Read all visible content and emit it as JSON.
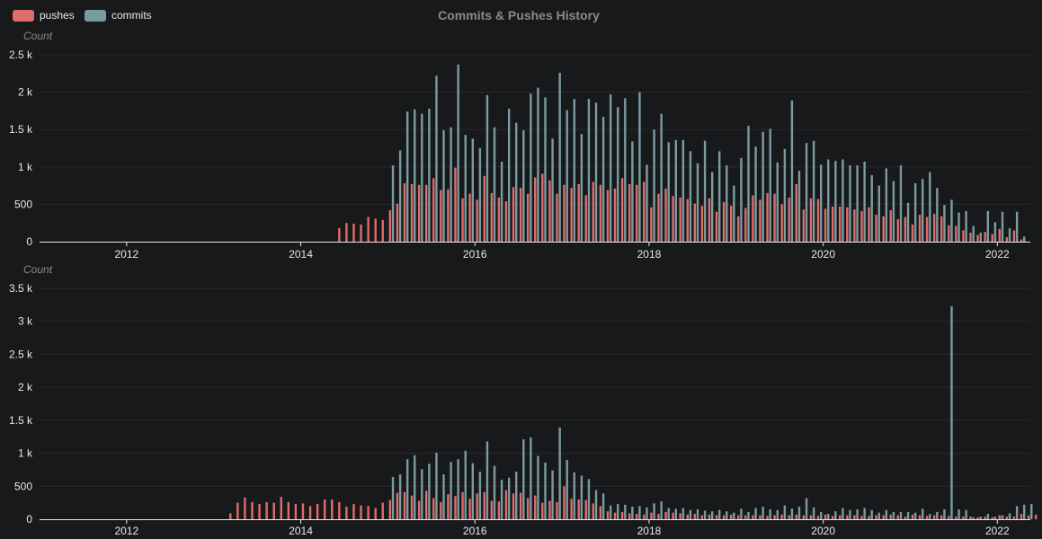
{
  "title": "Commits & Pushes History",
  "legend": [
    {
      "label": "pushes",
      "color": "#e06c6c"
    },
    {
      "label": "commits",
      "color": "#7a9ca1"
    }
  ],
  "colors": {
    "background": "#18191b",
    "pushes": "#e06c6c",
    "commits": "#7a9ca1",
    "title": "#8a8a8a",
    "grid": "#2a2b2e",
    "axis": "#e8e8e8",
    "tick_label": "#e8e8e8",
    "axis_title": "#8a8a8a"
  },
  "chart_data": [
    {
      "type": "bar",
      "ylabel": "Count",
      "xlim": [
        "2011-01",
        "2022-04"
      ],
      "ylim": [
        0,
        2500
      ],
      "yticks": [
        0,
        500,
        1000,
        1500,
        2000,
        2500
      ],
      "ytick_labels": [
        "0",
        "500",
        "1 k",
        "1.5 k",
        "2 k",
        "2.5 k"
      ],
      "xticks": [
        "2012",
        "2014",
        "2016",
        "2018",
        "2020",
        "2022"
      ],
      "grid": true,
      "series": [
        {
          "name": "pushes",
          "start": "2014-06",
          "values": [
            180,
            250,
            240,
            230,
            330,
            310,
            290,
            420,
            510,
            780,
            770,
            760,
            760,
            850,
            690,
            700,
            990,
            580,
            640,
            560,
            880,
            650,
            590,
            540,
            730,
            720,
            640,
            860,
            910,
            820,
            640,
            760,
            720,
            770,
            620,
            800,
            760,
            690,
            710,
            850,
            770,
            760,
            800,
            460,
            640,
            710,
            610,
            590,
            570,
            510,
            480,
            580,
            400,
            530,
            480,
            340,
            450,
            620,
            560,
            650,
            640,
            500,
            590,
            770,
            430,
            580,
            570,
            440,
            470,
            470,
            460,
            430,
            410,
            460,
            360,
            340,
            420,
            300,
            330,
            230,
            360,
            330,
            370,
            340,
            220,
            210,
            150,
            120,
            90,
            130,
            100,
            170,
            60,
            150,
            30
          ]
        },
        {
          "name": "commits",
          "start": "2015-01",
          "values": [
            1020,
            1220,
            1740,
            1770,
            1710,
            1780,
            2220,
            1490,
            1530,
            2370,
            1430,
            1380,
            1250,
            1960,
            1530,
            1070,
            1780,
            1590,
            1490,
            1980,
            2060,
            1930,
            1380,
            2260,
            1760,
            1910,
            1440,
            1910,
            1860,
            1670,
            1970,
            1800,
            1920,
            1340,
            2000,
            1030,
            1500,
            1710,
            1330,
            1360,
            1360,
            1210,
            1050,
            1350,
            930,
            1210,
            1020,
            750,
            1120,
            1550,
            1270,
            1470,
            1510,
            1060,
            1240,
            1890,
            950,
            1320,
            1350,
            1030,
            1100,
            1080,
            1100,
            1020,
            1020,
            1070,
            890,
            750,
            980,
            810,
            1020,
            520,
            780,
            840,
            930,
            720,
            490,
            560,
            390,
            410,
            210,
            120,
            410,
            260,
            400,
            180,
            400,
            70
          ]
        }
      ]
    },
    {
      "type": "bar",
      "ylabel": "Count",
      "xlim": [
        "2011-01",
        "2022-04"
      ],
      "ylim": [
        0,
        3500
      ],
      "yticks": [
        0,
        500,
        1000,
        1500,
        2000,
        2500,
        3000,
        3500
      ],
      "ytick_labels": [
        "0",
        "500",
        "1 k",
        "1.5 k",
        "2 k",
        "2.5 k",
        "3 k",
        "3.5 k"
      ],
      "xticks": [
        "2012",
        "2014",
        "2016",
        "2018",
        "2020",
        "2022"
      ],
      "grid": true,
      "series": [
        {
          "name": "pushes",
          "start": "2013-03",
          "values": [
            90,
            250,
            330,
            260,
            230,
            260,
            250,
            340,
            260,
            230,
            240,
            200,
            230,
            300,
            300,
            260,
            190,
            230,
            210,
            200,
            170,
            250,
            290,
            400,
            410,
            360,
            280,
            430,
            320,
            260,
            380,
            350,
            410,
            310,
            390,
            410,
            280,
            270,
            440,
            390,
            400,
            320,
            360,
            250,
            280,
            260,
            500,
            310,
            300,
            290,
            240,
            200,
            120,
            100,
            110,
            90,
            80,
            70,
            100,
            80,
            110,
            100,
            90,
            70,
            80,
            60,
            70,
            60,
            60,
            70,
            60,
            60,
            60,
            60,
            50,
            60,
            70,
            60,
            70,
            60,
            60,
            50,
            70,
            50,
            60,
            60,
            60,
            50,
            50,
            60,
            60,
            70,
            60,
            40,
            70,
            60,
            50,
            60,
            60,
            50,
            40,
            40,
            40,
            30,
            40,
            30,
            60,
            40,
            40,
            80,
            60,
            70,
            50
          ]
        },
        {
          "name": "commits",
          "start": "2015-01",
          "values": [
            640,
            680,
            910,
            970,
            760,
            840,
            1010,
            680,
            870,
            910,
            1040,
            850,
            720,
            1180,
            810,
            600,
            630,
            720,
            1210,
            1240,
            960,
            860,
            740,
            1390,
            900,
            710,
            660,
            610,
            440,
            390,
            210,
            230,
            220,
            190,
            200,
            180,
            240,
            270,
            170,
            160,
            170,
            140,
            150,
            130,
            120,
            140,
            120,
            100,
            160,
            110,
            170,
            190,
            150,
            140,
            210,
            160,
            190,
            320,
            180,
            110,
            80,
            120,
            170,
            140,
            150,
            170,
            140,
            100,
            140,
            110,
            110,
            110,
            100,
            160,
            80,
            110,
            150,
            3230,
            150,
            140,
            30,
            40,
            80,
            40,
            60,
            90,
            200,
            220,
            230
          ]
        }
      ]
    }
  ]
}
